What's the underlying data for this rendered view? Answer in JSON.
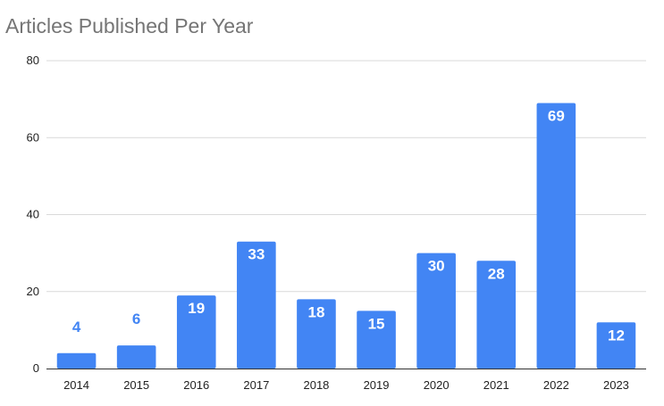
{
  "chart_data": {
    "type": "bar",
    "title": "Articles Published Per Year",
    "xlabel": "",
    "ylabel": "",
    "categories": [
      "2014",
      "2015",
      "2016",
      "2017",
      "2018",
      "2019",
      "2020",
      "2021",
      "2022",
      "2023"
    ],
    "values": [
      4,
      6,
      19,
      33,
      18,
      15,
      30,
      28,
      69,
      12
    ],
    "ylim": [
      0,
      80
    ],
    "yticks": [
      0,
      20,
      40,
      60,
      80
    ],
    "grid": true,
    "legend": "none",
    "colors": {
      "bar": "#4285f4",
      "label_inside": "#ffffff",
      "label_outside": "#4285f4",
      "grid": "#d9d9d9",
      "axis": "#333333"
    }
  }
}
